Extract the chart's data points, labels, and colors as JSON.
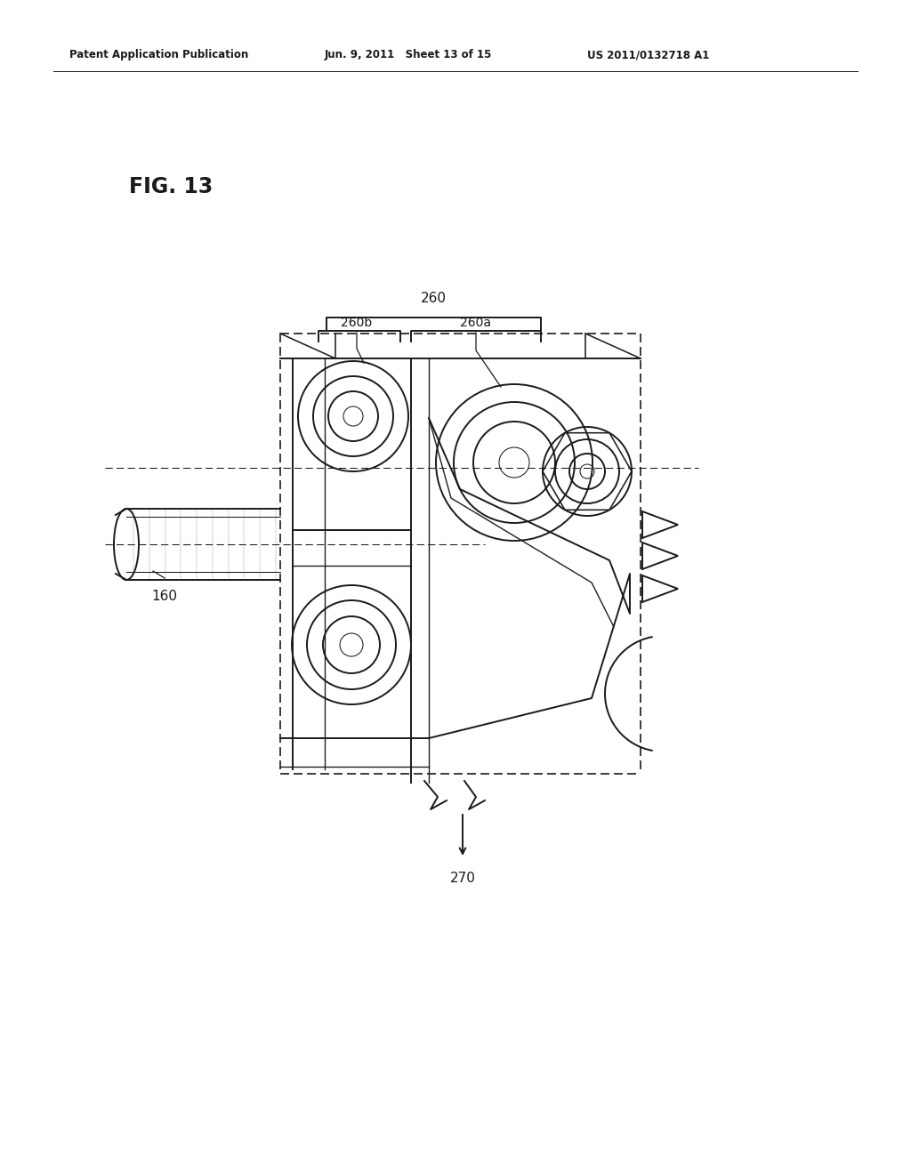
{
  "background_color": "#ffffff",
  "header_left": "Patent Application Publication",
  "header_mid": "Jun. 9, 2011   Sheet 13 of 15",
  "header_right": "US 2011/0132718 A1",
  "fig_label": "FIG. 13",
  "label_160": "160",
  "label_260": "260",
  "label_260a": "260a",
  "label_260b": "260b",
  "label_270": "270",
  "line_color": "#1a1a1a",
  "lw": 1.4,
  "tlw": 0.75
}
